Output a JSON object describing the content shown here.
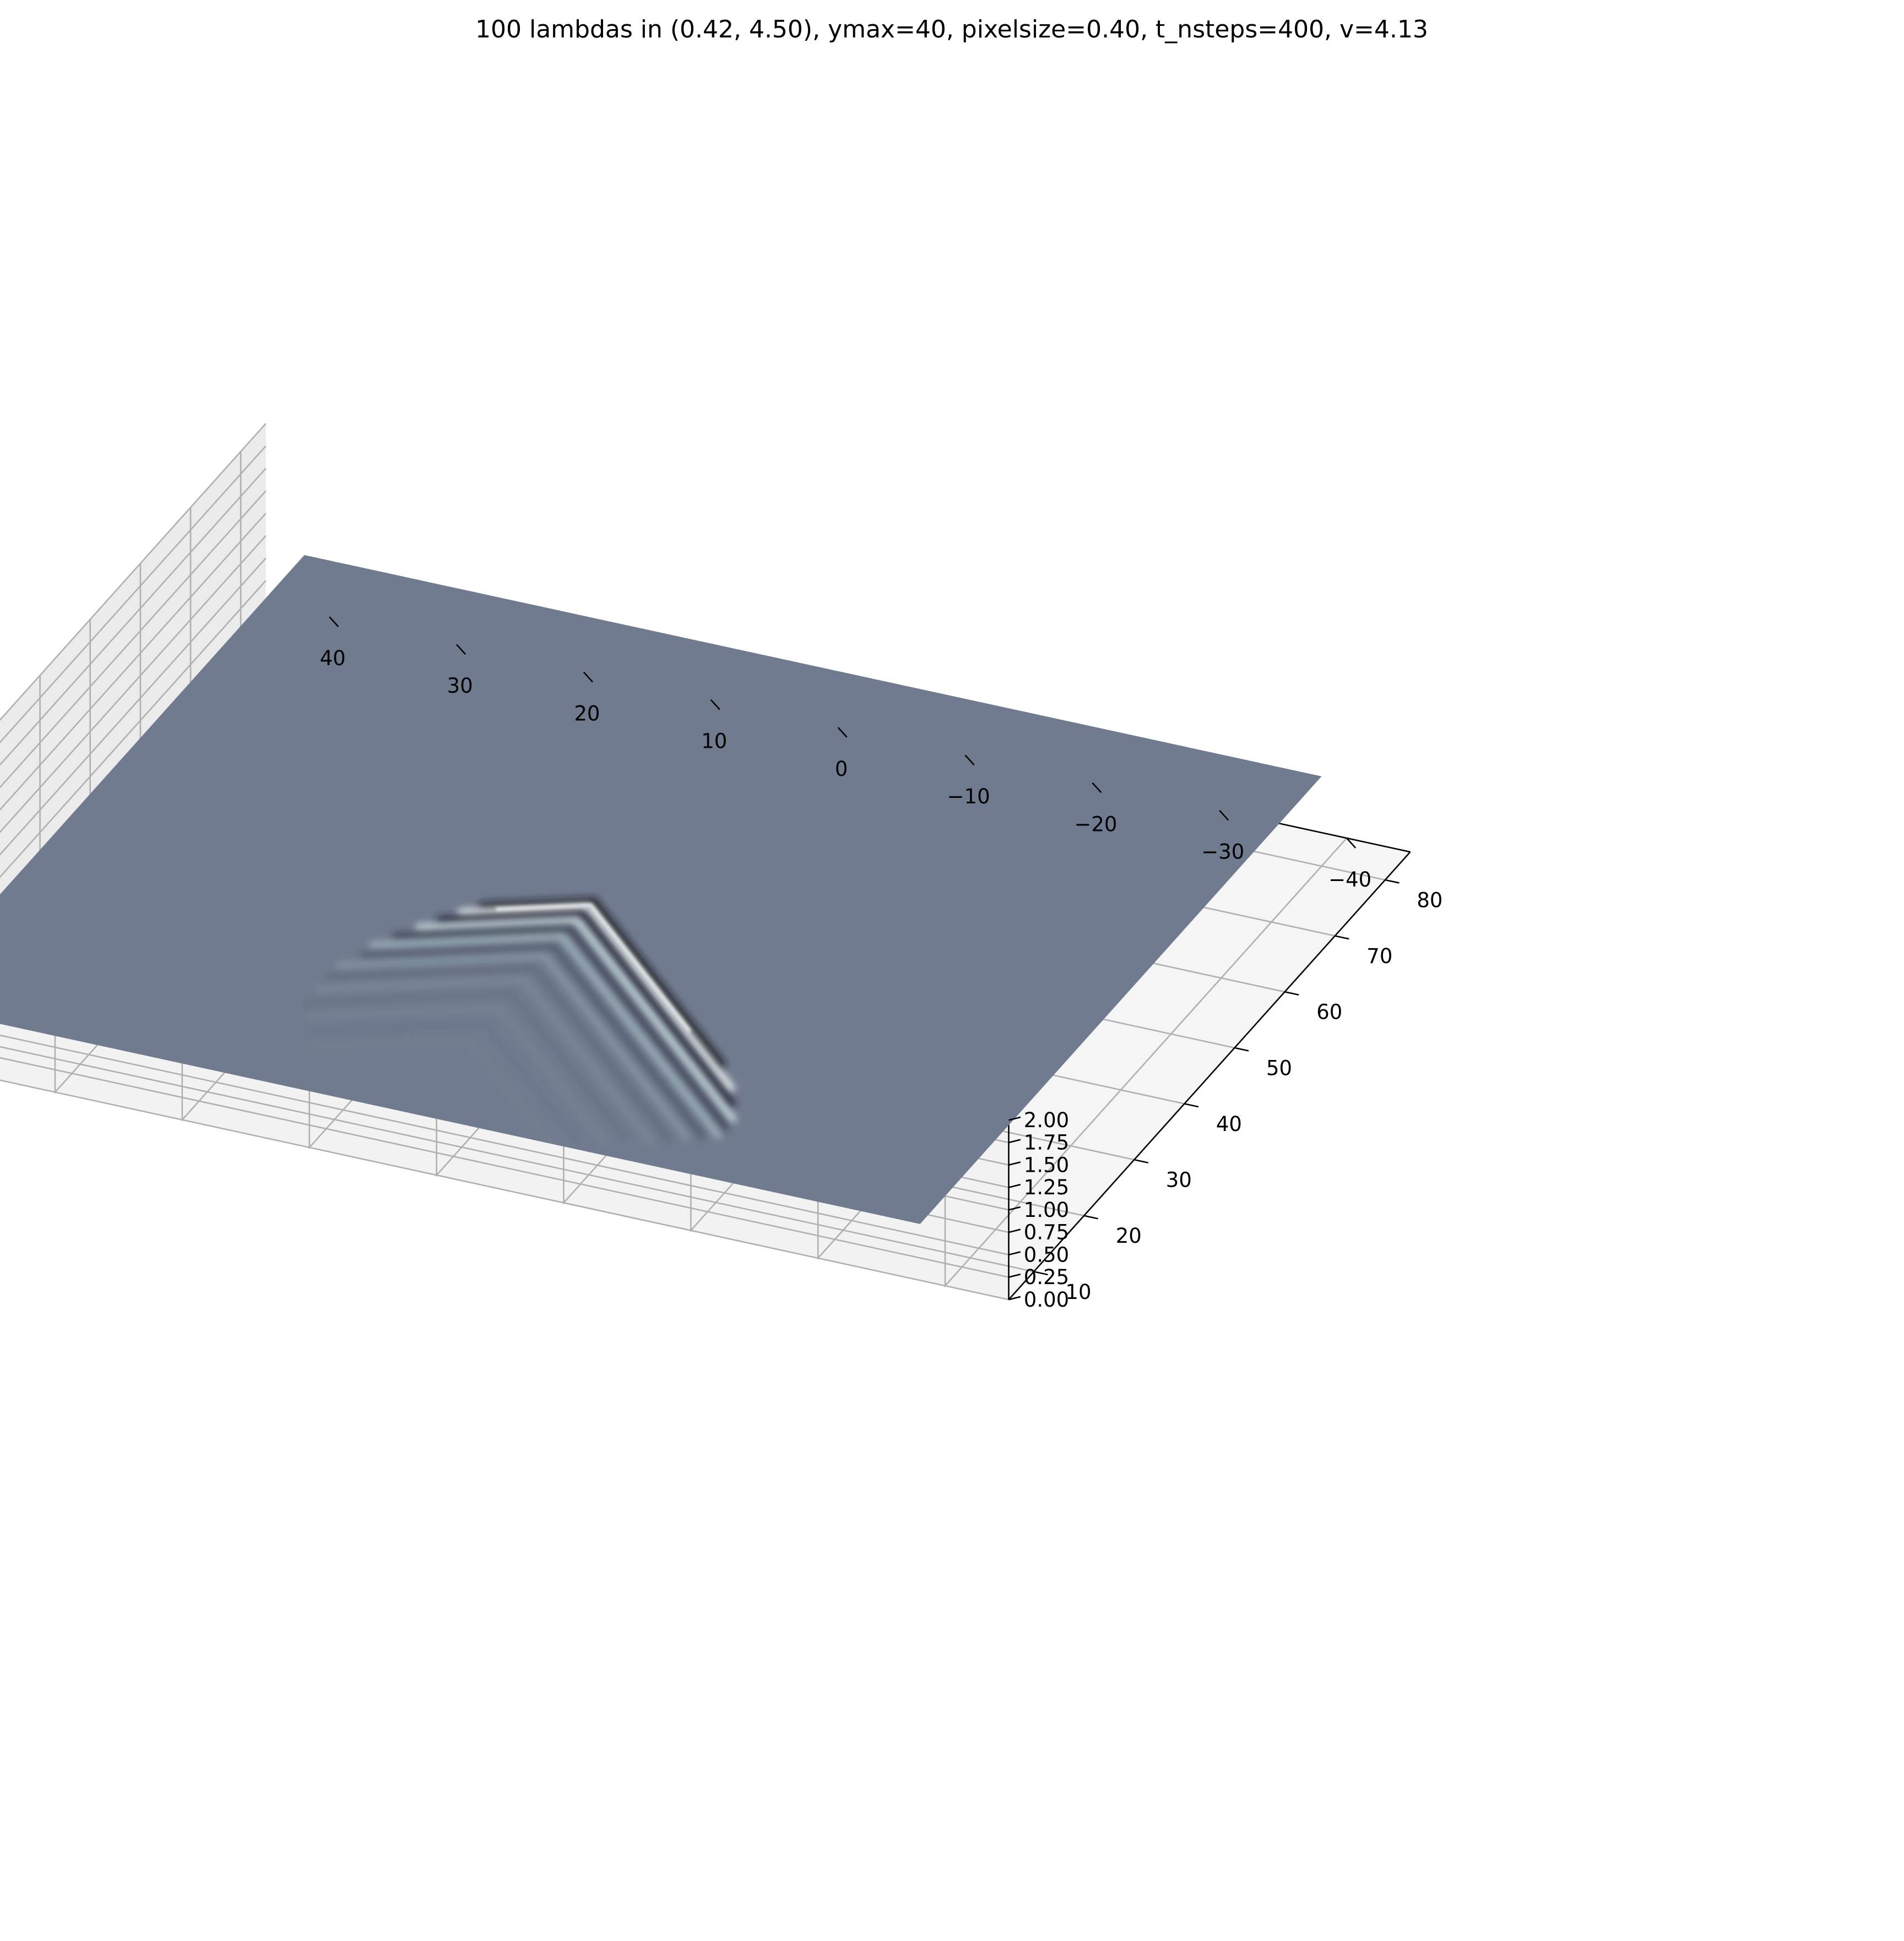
{
  "chart_data": {
    "type": "surface3d",
    "title": "100 lambdas in (0.42, 4.50), ymax=40, pixelsize=0.40, t_nsteps=400, v=4.13",
    "axes": {
      "x": {
        "ticks": [
          40,
          30,
          20,
          10,
          0,
          -10,
          -20,
          -30,
          -40
        ],
        "tick_labels": [
          "40",
          "30",
          "20",
          "10",
          "0",
          "−10",
          "−20",
          "−30",
          "−40"
        ],
        "range": [
          45,
          -45
        ]
      },
      "y": {
        "ticks": [
          10,
          20,
          30,
          40,
          50,
          60,
          70,
          80
        ],
        "tick_labels": [
          "10",
          "20",
          "30",
          "40",
          "50",
          "60",
          "70",
          "80"
        ],
        "range": [
          5,
          85
        ]
      },
      "z": {
        "ticks": [
          0.0,
          0.25,
          0.5,
          0.75,
          1.0,
          1.25,
          1.5,
          1.75,
          2.0
        ],
        "tick_labels": [
          "0.00",
          "0.25",
          "0.50",
          "0.75",
          "1.00",
          "1.25",
          "1.50",
          "1.75",
          "2.00"
        ],
        "range": [
          0,
          2.0
        ]
      }
    },
    "surface": {
      "x_range": [
        40,
        -40
      ],
      "y_range": [
        0,
        80
      ],
      "base_level": 1.0,
      "colormap": "bone",
      "base_color": "#717b8f",
      "feature": "V-shaped (chevron) wake pattern; apex near x=0, y=38; strongest oscillations near apex"
    },
    "grid": true,
    "legend": "none",
    "pane_colors": [
      "#f2f2f2",
      "#ebebeb",
      "#f5f5f5"
    ]
  }
}
